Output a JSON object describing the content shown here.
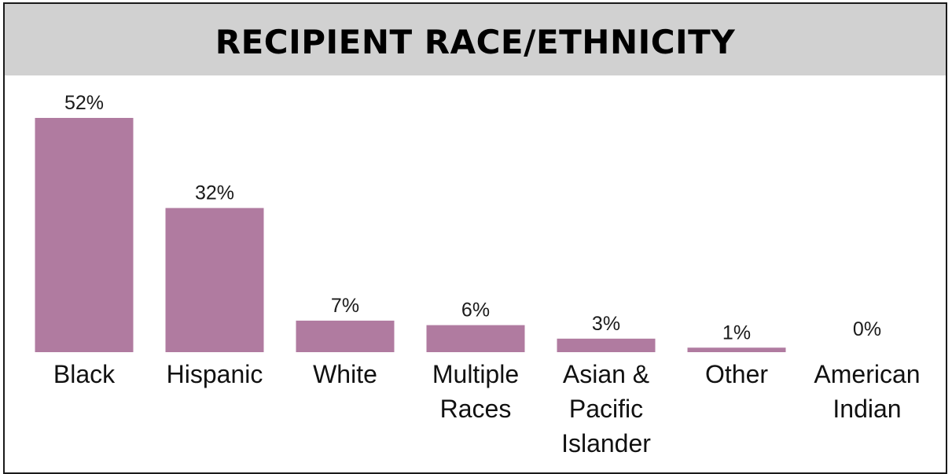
{
  "chart_data": {
    "type": "bar",
    "title": "RECIPIENT RACE/ETHNICITY",
    "categories": [
      [
        "Black"
      ],
      [
        "Hispanic"
      ],
      [
        "White"
      ],
      [
        "Multiple",
        "Races"
      ],
      [
        "Asian &",
        "Pacific",
        "Islander"
      ],
      [
        "Other"
      ],
      [
        "American",
        "Indian"
      ]
    ],
    "values": [
      52,
      32,
      7,
      6,
      3,
      1,
      0
    ],
    "value_labels": [
      "52%",
      "32%",
      "7%",
      "6%",
      "3%",
      "1%",
      "0%"
    ],
    "xlabel": "",
    "ylabel": "",
    "ylim": [
      0,
      52
    ],
    "grid": false,
    "bar_color": "#b07ba0",
    "title_band_color": "#d1d1d1"
  }
}
